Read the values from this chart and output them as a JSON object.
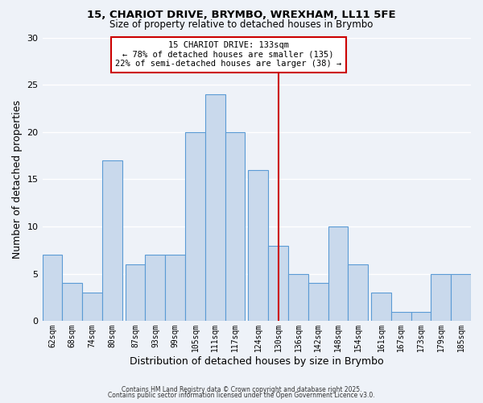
{
  "title1": "15, CHARIOT DRIVE, BRYMBO, WREXHAM, LL11 5FE",
  "title2": "Size of property relative to detached houses in Brymbo",
  "xlabel": "Distribution of detached houses by size in Brymbo",
  "ylabel": "Number of detached properties",
  "bar_labels": [
    "62sqm",
    "68sqm",
    "74sqm",
    "80sqm",
    "87sqm",
    "93sqm",
    "99sqm",
    "105sqm",
    "111sqm",
    "117sqm",
    "124sqm",
    "130sqm",
    "136sqm",
    "142sqm",
    "148sqm",
    "154sqm",
    "161sqm",
    "167sqm",
    "173sqm",
    "179sqm",
    "185sqm"
  ],
  "bar_values": [
    7,
    4,
    3,
    17,
    6,
    7,
    7,
    20,
    24,
    20,
    16,
    8,
    5,
    4,
    10,
    6,
    3,
    1,
    1,
    5,
    5
  ],
  "bar_color": "#c9d9ec",
  "bar_edgecolor": "#5b9bd5",
  "vline_x": 133,
  "vline_color": "#cc0000",
  "annotation_title": "15 CHARIOT DRIVE: 133sqm",
  "annotation_line1": "← 78% of detached houses are smaller (135)",
  "annotation_line2": "22% of semi-detached houses are larger (38) →",
  "annotation_box_color": "#cc0000",
  "annotation_text_color": "#000000",
  "annotation_bg": "#ffffff",
  "ylim": [
    0,
    30
  ],
  "yticks": [
    0,
    5,
    10,
    15,
    20,
    25,
    30
  ],
  "footnote1": "Contains HM Land Registry data © Crown copyright and database right 2025.",
  "footnote2": "Contains public sector information licensed under the Open Government Licence v3.0.",
  "background_color": "#eef2f8",
  "grid_color": "#ffffff",
  "bin_width": 6
}
